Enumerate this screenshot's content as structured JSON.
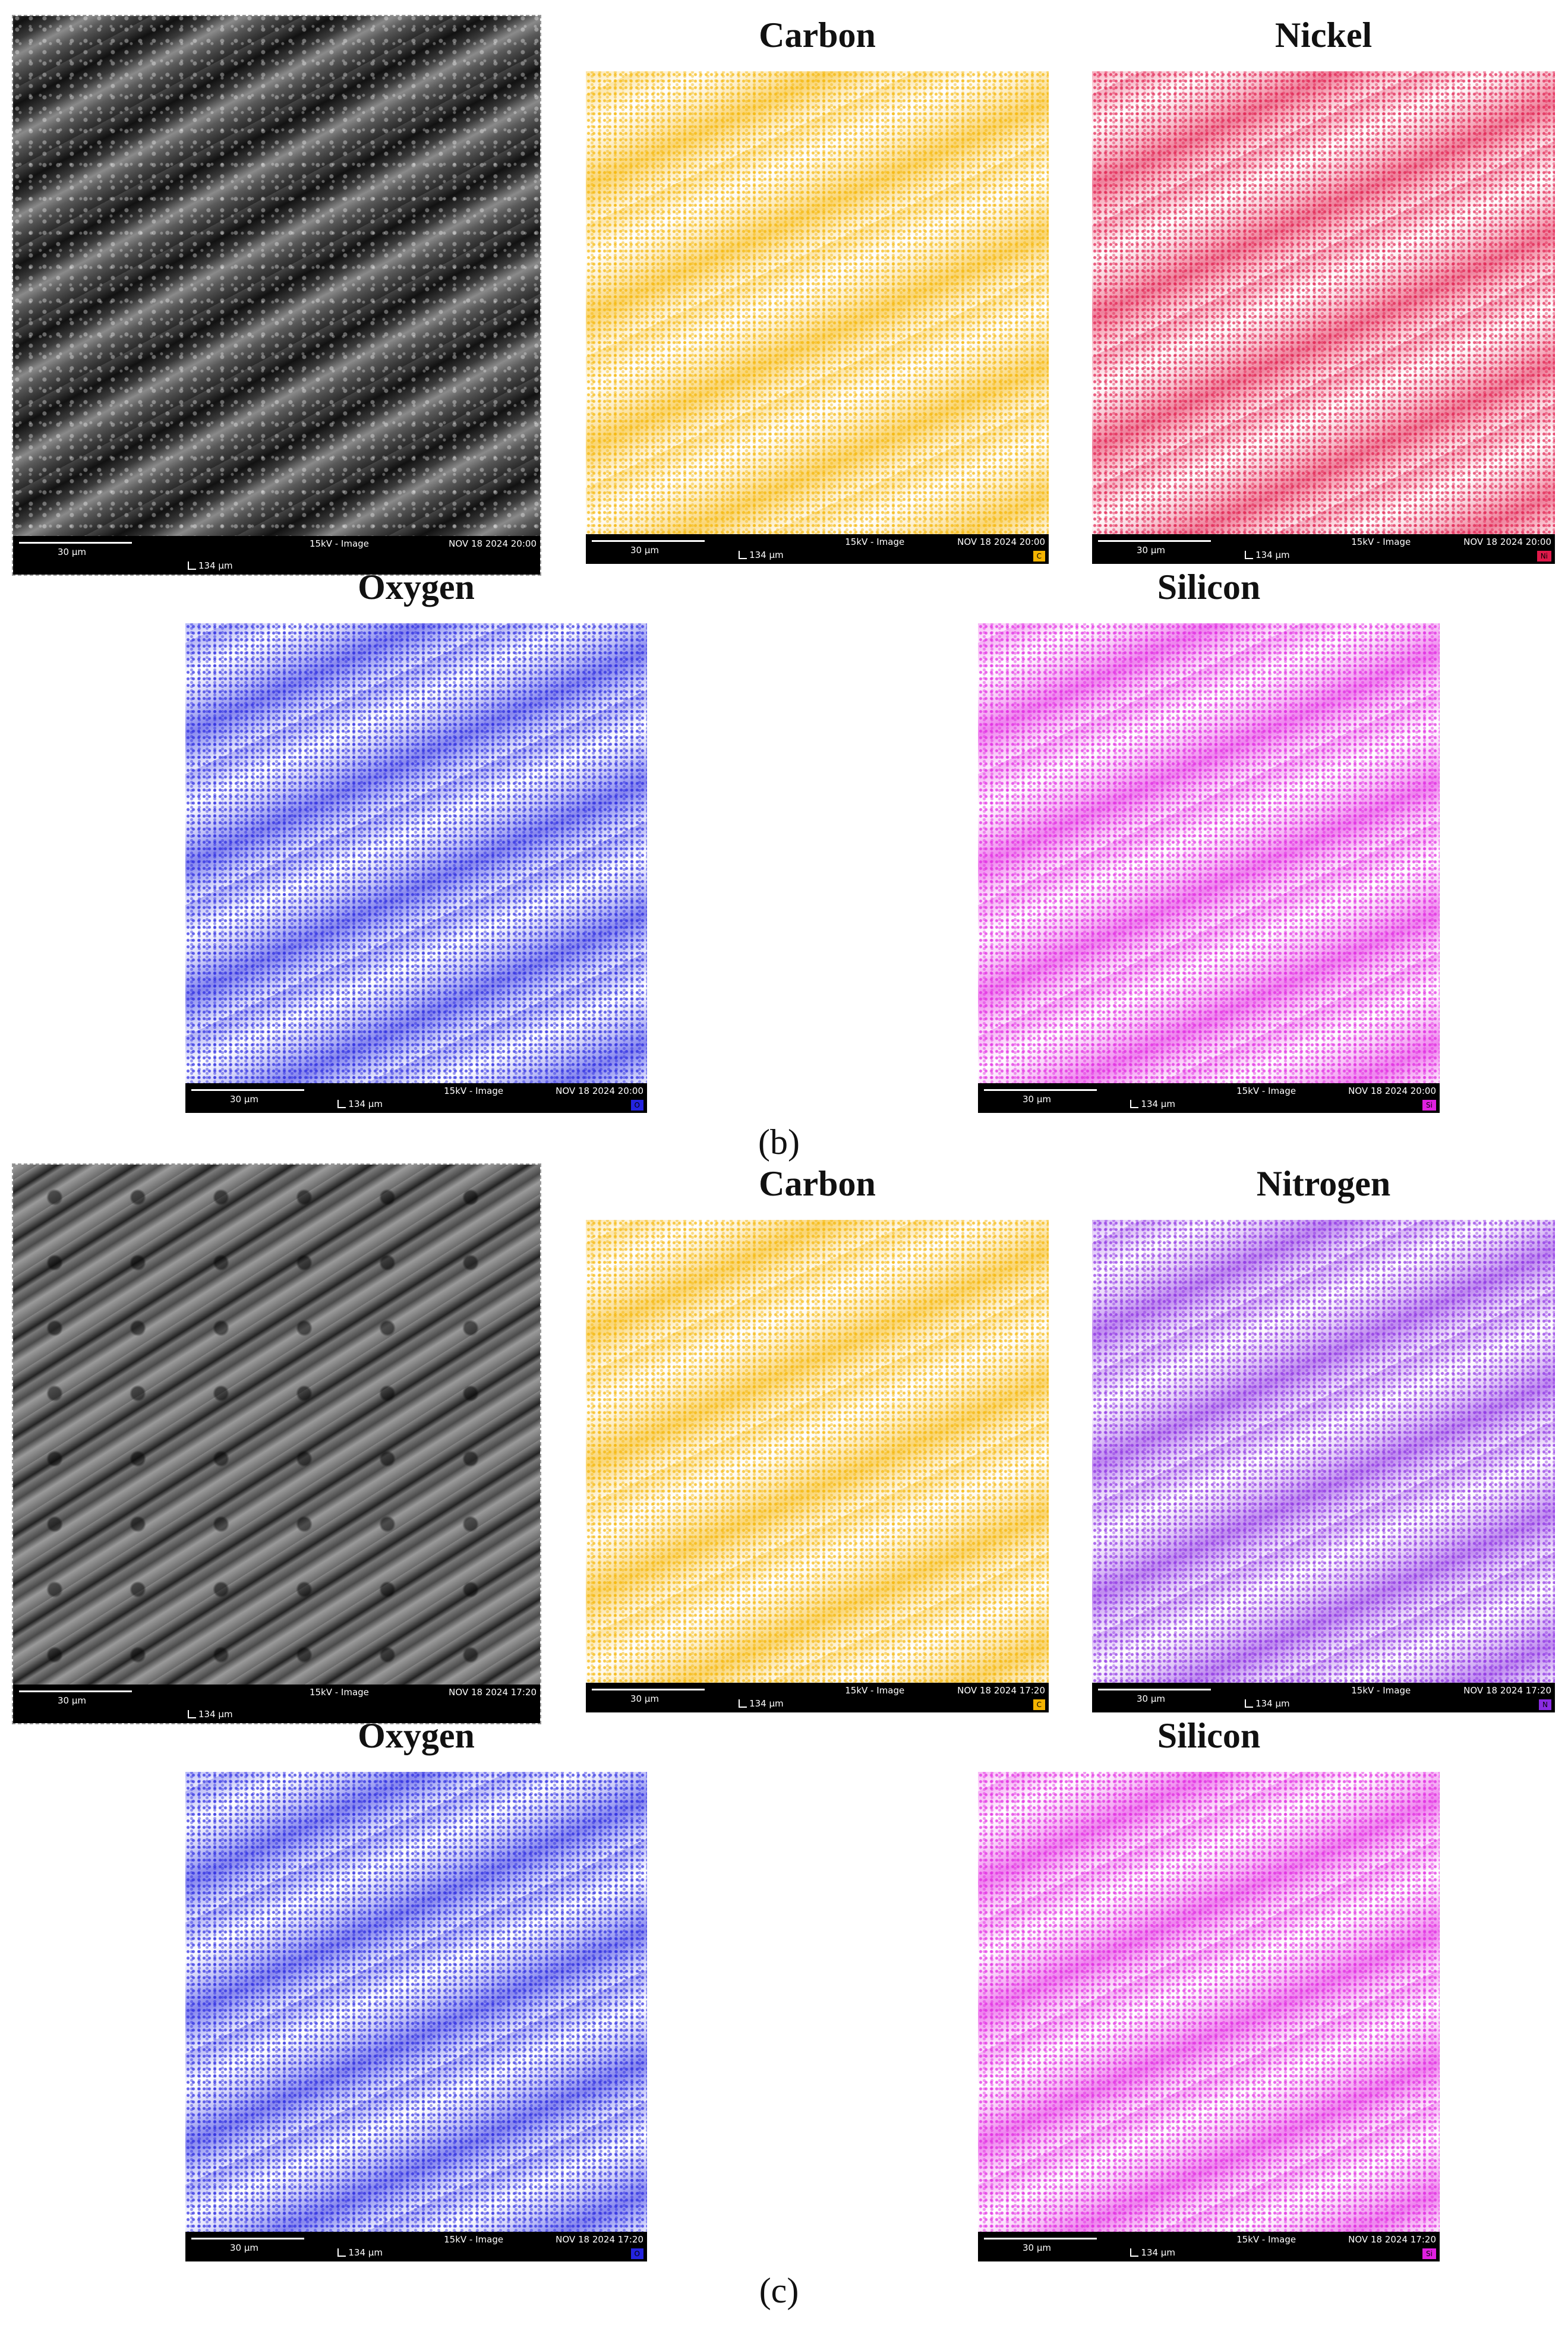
{
  "figures": [
    {
      "caption": "(b)",
      "panels": [
        {
          "kind": "sem",
          "info": {
            "scale": "30 µm",
            "mode": "15kV - Image",
            "date": "NOV 18 2024 20:00",
            "field": "134 µm"
          }
        },
        {
          "kind": "map",
          "title": "Carbon",
          "color": "#f5b400",
          "info": {
            "scale": "30 µm",
            "mode": "15kV - Image",
            "date": "NOV 18 2024 20:00",
            "field": "134 µm",
            "element": "C"
          }
        },
        {
          "kind": "map",
          "title": "Nickel",
          "color": "#e0194a",
          "info": {
            "scale": "30 µm",
            "mode": "15kV - Image",
            "date": "NOV 18 2024 20:00",
            "field": "134 µm",
            "element": "Ni"
          }
        },
        {
          "kind": "map",
          "title": "Oxygen",
          "color": "#2424e0",
          "info": {
            "scale": "30 µm",
            "mode": "15kV - Image",
            "date": "NOV 18 2024 20:00",
            "field": "134 µm",
            "element": "O"
          }
        },
        {
          "kind": "map",
          "title": "Silicon",
          "color": "#e020e0",
          "info": {
            "scale": "30 µm",
            "mode": "15kV - Image",
            "date": "NOV 18 2024 20:00",
            "field": "134 µm",
            "element": "Si"
          }
        }
      ]
    },
    {
      "caption": "(c)",
      "panels": [
        {
          "kind": "sem",
          "info": {
            "scale": "30 µm",
            "mode": "15kV - Image",
            "date": "NOV 18 2024 17:20",
            "field": "134 µm"
          }
        },
        {
          "kind": "map",
          "title": "Carbon",
          "color": "#f5b400",
          "info": {
            "scale": "30 µm",
            "mode": "15kV - Image",
            "date": "NOV 18 2024 17:20",
            "field": "134 µm",
            "element": "C"
          }
        },
        {
          "kind": "map",
          "title": "Nitrogen",
          "color": "#8a2be2",
          "info": {
            "scale": "30 µm",
            "mode": "15kV - Image",
            "date": "NOV 18 2024 17:20",
            "field": "134 µm",
            "element": "N"
          }
        },
        {
          "kind": "map",
          "title": "Oxygen",
          "color": "#2424e0",
          "info": {
            "scale": "30 µm",
            "mode": "15kV - Image",
            "date": "NOV 18 2024 17:20",
            "field": "134 µm",
            "element": "O"
          }
        },
        {
          "kind": "map",
          "title": "Silicon",
          "color": "#e020e0",
          "info": {
            "scale": "30 µm",
            "mode": "15kV - Image",
            "date": "NOV 18 2024 17:20",
            "field": "134 µm",
            "element": "Si"
          }
        }
      ]
    }
  ]
}
